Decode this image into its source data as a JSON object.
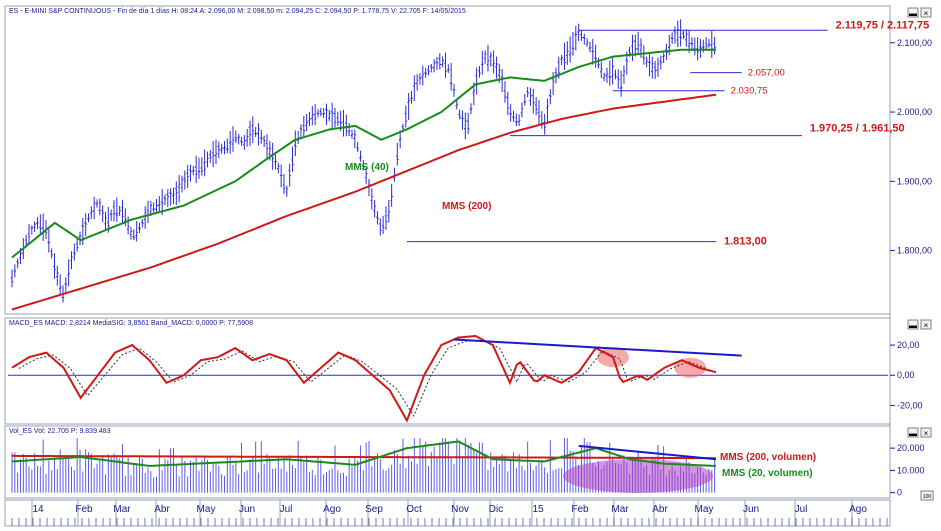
{
  "headers": {
    "price": "ES - E-MINI S&P CONTINUOUS - Fin de día 1 días H: 08:24 A: 2.096,00 M: 2.098,50 m: 2.094,25 C: 2.094,50 P: 1.778,75 V: 22.705 F: 14/05/2015",
    "macd": "MACD_ES MACD: 2,8214 MediaSIG: 3,8561 Band_MACD: 0,0000 P: 77,5908",
    "vol": "Vol_ES Vol: 22.705 P: 9.839.483"
  },
  "chart_data": [
    {
      "type": "line",
      "panel": "price",
      "x_labels": [
        "14",
        "Feb",
        "Mar",
        "Abr",
        "May",
        "Jun",
        "Jul",
        "Ago",
        "Sep",
        "Oct",
        "Nov",
        "Dic",
        "15",
        "Feb",
        "Mar",
        "Abr",
        "May",
        "Jun",
        "Jul",
        "Ago"
      ],
      "y_ticks": [
        1800,
        1900,
        2000,
        2100
      ],
      "y_tick_labels": [
        "1.800,00",
        "1.900,00",
        "2.000,00",
        "2.100,00"
      ],
      "ylim": [
        1720,
        2130
      ],
      "price_path": [
        [
          0,
          1760
        ],
        [
          2,
          1825
        ],
        [
          3,
          1840
        ],
        [
          4,
          1830
        ],
        [
          5,
          1775
        ],
        [
          6,
          1735
        ],
        [
          7,
          1790
        ],
        [
          9,
          1850
        ],
        [
          10,
          1870
        ],
        [
          11,
          1840
        ],
        [
          12,
          1860
        ],
        [
          13,
          1855
        ],
        [
          14,
          1820
        ],
        [
          15,
          1835
        ],
        [
          16,
          1860
        ],
        [
          17,
          1865
        ],
        [
          18,
          1875
        ],
        [
          19,
          1880
        ],
        [
          20,
          1900
        ],
        [
          21,
          1915
        ],
        [
          22,
          1920
        ],
        [
          23,
          1935
        ],
        [
          24,
          1945
        ],
        [
          25,
          1950
        ],
        [
          26,
          1965
        ],
        [
          27,
          1955
        ],
        [
          28,
          1975
        ],
        [
          29,
          1965
        ],
        [
          30,
          1945
        ],
        [
          31,
          1920
        ],
        [
          32,
          1885
        ],
        [
          33,
          1955
        ],
        [
          34,
          1980
        ],
        [
          35,
          1995
        ],
        [
          36,
          2000
        ],
        [
          37,
          1995
        ],
        [
          38,
          1990
        ],
        [
          39,
          1980
        ],
        [
          40,
          1960
        ],
        [
          41,
          1920
        ],
        [
          42,
          1870
        ],
        [
          43,
          1830
        ],
        [
          44,
          1860
        ],
        [
          45,
          1950
        ],
        [
          46,
          2000
        ],
        [
          47,
          2040
        ],
        [
          48,
          2055
        ],
        [
          49,
          2065
        ],
        [
          50,
          2075
        ],
        [
          51,
          2060
        ],
        [
          52,
          2000
        ],
        [
          53,
          1975
        ],
        [
          54,
          2040
        ],
        [
          55,
          2080
        ],
        [
          56,
          2075
        ],
        [
          57,
          2050
        ],
        [
          58,
          2000
        ],
        [
          59,
          1985
        ],
        [
          60,
          2030
        ],
        [
          61,
          2010
        ],
        [
          62,
          1980
        ],
        [
          63,
          2040
        ],
        [
          64,
          2075
        ],
        [
          65,
          2090
        ],
        [
          66,
          2115
        ],
        [
          67,
          2100
        ],
        [
          68,
          2080
        ],
        [
          69,
          2050
        ],
        [
          70,
          2060
        ],
        [
          71,
          2040
        ],
        [
          72,
          2090
        ],
        [
          73,
          2100
        ],
        [
          74,
          2070
        ],
        [
          75,
          2060
        ],
        [
          76,
          2080
        ],
        [
          77,
          2110
        ],
        [
          78,
          2115
        ],
        [
          79,
          2100
        ],
        [
          80,
          2090
        ],
        [
          81,
          2100
        ],
        [
          82,
          2095
        ]
      ],
      "series": [
        {
          "name": "MMS (40)",
          "color": "#1a8a1a",
          "points": [
            [
              0,
              1790
            ],
            [
              5,
              1840
            ],
            [
              8,
              1815
            ],
            [
              14,
              1845
            ],
            [
              20,
              1865
            ],
            [
              26,
              1900
            ],
            [
              30,
              1935
            ],
            [
              33,
              1960
            ],
            [
              37,
              1975
            ],
            [
              40,
              1980
            ],
            [
              43,
              1960
            ],
            [
              46,
              1975
            ],
            [
              50,
              2000
            ],
            [
              54,
              2040
            ],
            [
              58,
              2050
            ],
            [
              62,
              2045
            ],
            [
              66,
              2065
            ],
            [
              70,
              2080
            ],
            [
              74,
              2085
            ],
            [
              78,
              2090
            ],
            [
              82,
              2090
            ]
          ]
        },
        {
          "name": "MMS (200)",
          "color": "#d01818",
          "points": [
            [
              0,
              1715
            ],
            [
              8,
              1745
            ],
            [
              16,
              1775
            ],
            [
              24,
              1810
            ],
            [
              32,
              1850
            ],
            [
              40,
              1885
            ],
            [
              46,
              1915
            ],
            [
              52,
              1945
            ],
            [
              58,
              1970
            ],
            [
              64,
              1990
            ],
            [
              70,
              2005
            ],
            [
              76,
              2015
            ],
            [
              82,
              2025
            ]
          ]
        }
      ],
      "levels": [
        {
          "label": "2.119,75 / 2.117,75",
          "value": 2118,
          "x": [
            66,
            95
          ]
        },
        {
          "label": "2.057,00",
          "value": 2057,
          "x": [
            79,
            85
          ]
        },
        {
          "label": "2.030,75",
          "value": 2030.75,
          "x": [
            70,
            83
          ]
        },
        {
          "label": "1.970,25 / 1.961,50",
          "value": 1966,
          "x": [
            58,
            92
          ]
        },
        {
          "label": "1.813,00",
          "value": 1813,
          "x": [
            46,
            82
          ]
        }
      ],
      "annotations": [
        "MMS (40)",
        "MMS (200)"
      ]
    },
    {
      "type": "line",
      "panel": "macd",
      "y_ticks": [
        20,
        0,
        -20
      ],
      "y_tick_labels": [
        "20,00",
        "0,00",
        "-20,00"
      ],
      "ylim": [
        -31,
        30
      ],
      "series": [
        {
          "name": "MACD",
          "color": "#d01818",
          "points": [
            [
              0,
              5
            ],
            [
              2,
              12
            ],
            [
              4,
              15
            ],
            [
              6,
              5
            ],
            [
              8,
              -15
            ],
            [
              10,
              0
            ],
            [
              12,
              15
            ],
            [
              14,
              20
            ],
            [
              16,
              10
            ],
            [
              18,
              -5
            ],
            [
              20,
              0
            ],
            [
              22,
              10
            ],
            [
              24,
              12
            ],
            [
              26,
              18
            ],
            [
              28,
              10
            ],
            [
              30,
              14
            ],
            [
              32,
              10
            ],
            [
              34,
              -5
            ],
            [
              36,
              5
            ],
            [
              38,
              15
            ],
            [
              40,
              10
            ],
            [
              42,
              0
            ],
            [
              44,
              -10
            ],
            [
              46,
              -30
            ],
            [
              48,
              0
            ],
            [
              50,
              20
            ],
            [
              52,
              25
            ],
            [
              54,
              26
            ],
            [
              56,
              20
            ],
            [
              58,
              -5
            ],
            [
              59,
              10
            ],
            [
              61,
              -5
            ],
            [
              62,
              0
            ],
            [
              64,
              -5
            ],
            [
              66,
              2
            ],
            [
              68,
              18
            ],
            [
              70,
              12
            ],
            [
              71,
              -5
            ],
            [
              73,
              0
            ],
            [
              74,
              -3
            ],
            [
              76,
              5
            ],
            [
              78,
              10
            ],
            [
              80,
              5
            ],
            [
              82,
              2
            ]
          ]
        }
      ],
      "dashed_series": true,
      "trendline": {
        "from": [
          55,
          25
        ],
        "to": [
          85,
          13
        ]
      },
      "highlights": [
        [
          70,
          12
        ],
        [
          79,
          5
        ]
      ]
    },
    {
      "type": "bar",
      "panel": "volume",
      "y_ticks": [
        20000,
        10000,
        0
      ],
      "y_tick_labels": [
        "20.000",
        "10.000",
        "0"
      ],
      "ylim": [
        -1500,
        25000
      ],
      "series": [
        {
          "name": "MMS (200, volumen)",
          "color": "#d01818",
          "points": [
            [
              0,
              16500
            ],
            [
              40,
              16000
            ],
            [
              60,
              15800
            ],
            [
              82,
              15500
            ]
          ]
        },
        {
          "name": "MMS (20, volumen)",
          "color": "#1a8a1a",
          "points": [
            [
              0,
              14000
            ],
            [
              8,
              16000
            ],
            [
              16,
              12000
            ],
            [
              24,
              13500
            ],
            [
              32,
              15000
            ],
            [
              40,
              12500
            ],
            [
              46,
              20000
            ],
            [
              52,
              23000
            ],
            [
              56,
              15000
            ],
            [
              62,
              14000
            ],
            [
              68,
              20000
            ],
            [
              72,
              15000
            ],
            [
              76,
              13000
            ],
            [
              82,
              12000
            ]
          ]
        }
      ],
      "trendline": {
        "from": [
          66,
          21000
        ],
        "to": [
          82,
          15000
        ]
      }
    }
  ]
}
